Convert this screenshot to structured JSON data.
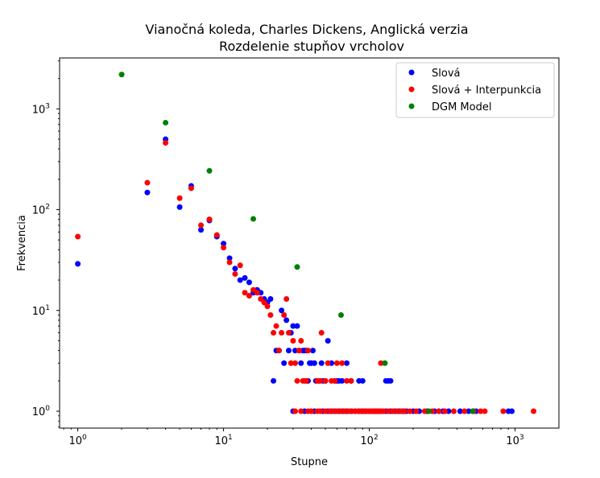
{
  "chart_data": {
    "type": "scatter",
    "title": "Vianočná koleda, Charles Dickens, Anglická verzia",
    "subtitle": "Rozdelenie stupňov vrcholov",
    "xlabel": "Stupne",
    "ylabel": "Frekvencia",
    "xscale": "log",
    "yscale": "log",
    "xlim": [
      0.75,
      2000
    ],
    "ylim": [
      0.68,
      3200
    ],
    "xticks": [
      {
        "value": 1,
        "base": "10",
        "exp": "0"
      },
      {
        "value": 10,
        "base": "10",
        "exp": "1"
      },
      {
        "value": 100,
        "base": "10",
        "exp": "2"
      },
      {
        "value": 1000,
        "base": "10",
        "exp": "3"
      }
    ],
    "yticks": [
      {
        "value": 1,
        "base": "10",
        "exp": "0"
      },
      {
        "value": 10,
        "base": "10",
        "exp": "1"
      },
      {
        "value": 100,
        "base": "10",
        "exp": "2"
      },
      {
        "value": 1000,
        "base": "10",
        "exp": "3"
      }
    ],
    "grid": false,
    "legend_position": "top-right",
    "series": [
      {
        "name": "Slová",
        "color": "#0000ff",
        "points": [
          [
            1,
            29
          ],
          [
            3,
            148
          ],
          [
            4,
            500
          ],
          [
            5,
            106
          ],
          [
            6,
            172
          ],
          [
            7,
            63
          ],
          [
            8,
            78
          ],
          [
            9,
            54
          ],
          [
            10,
            46
          ],
          [
            11,
            33
          ],
          [
            12,
            26
          ],
          [
            13,
            20
          ],
          [
            14,
            21
          ],
          [
            15,
            19
          ],
          [
            16,
            15
          ],
          [
            17,
            16
          ],
          [
            18,
            15
          ],
          [
            19,
            13
          ],
          [
            20,
            12
          ],
          [
            21,
            13
          ],
          [
            22,
            2
          ],
          [
            23,
            4
          ],
          [
            24,
            4
          ],
          [
            25,
            10
          ],
          [
            26,
            3
          ],
          [
            27,
            8
          ],
          [
            28,
            4
          ],
          [
            29,
            6
          ],
          [
            30,
            7
          ],
          [
            31,
            4
          ],
          [
            32,
            7
          ],
          [
            33,
            4
          ],
          [
            34,
            3
          ],
          [
            35,
            4
          ],
          [
            36,
            4
          ],
          [
            37,
            4
          ],
          [
            38,
            2
          ],
          [
            39,
            3
          ],
          [
            40,
            3
          ],
          [
            41,
            4
          ],
          [
            42,
            3
          ],
          [
            43,
            2
          ],
          [
            45,
            2
          ],
          [
            47,
            3
          ],
          [
            48,
            2
          ],
          [
            50,
            2
          ],
          [
            52,
            5
          ],
          [
            55,
            3
          ],
          [
            58,
            2
          ],
          [
            60,
            2
          ],
          [
            62,
            2
          ],
          [
            65,
            2
          ],
          [
            70,
            3
          ],
          [
            75,
            2
          ],
          [
            85,
            2
          ],
          [
            90,
            2
          ],
          [
            130,
            2
          ],
          [
            135,
            2
          ],
          [
            140,
            2
          ],
          [
            30,
            1
          ],
          [
            36,
            1
          ],
          [
            42,
            1
          ],
          [
            48,
            1
          ],
          [
            52,
            1
          ],
          [
            55,
            1
          ],
          [
            58,
            1
          ],
          [
            62,
            1
          ],
          [
            66,
            1
          ],
          [
            70,
            1
          ],
          [
            75,
            1
          ],
          [
            80,
            1
          ],
          [
            85,
            1
          ],
          [
            90,
            1
          ],
          [
            95,
            1
          ],
          [
            100,
            1
          ],
          [
            105,
            1
          ],
          [
            110,
            1
          ],
          [
            115,
            1
          ],
          [
            120,
            1
          ],
          [
            130,
            1
          ],
          [
            140,
            1
          ],
          [
            150,
            1
          ],
          [
            160,
            1
          ],
          [
            170,
            1
          ],
          [
            180,
            1
          ],
          [
            200,
            1
          ],
          [
            220,
            1
          ],
          [
            250,
            1
          ],
          [
            280,
            1
          ],
          [
            300,
            1
          ],
          [
            320,
            1
          ],
          [
            350,
            1
          ],
          [
            420,
            1
          ],
          [
            480,
            1
          ],
          [
            540,
            1
          ],
          [
            900,
            1
          ],
          [
            950,
            1
          ]
        ]
      },
      {
        "name": "Slová + Interpunkcia",
        "color": "#ff0000",
        "points": [
          [
            1,
            54
          ],
          [
            3,
            185
          ],
          [
            4,
            460
          ],
          [
            5,
            130
          ],
          [
            6,
            163
          ],
          [
            7,
            70
          ],
          [
            8,
            80
          ],
          [
            9,
            56
          ],
          [
            10,
            42
          ],
          [
            11,
            30
          ],
          [
            12,
            23
          ],
          [
            13,
            28
          ],
          [
            14,
            15
          ],
          [
            15,
            14
          ],
          [
            16,
            16
          ],
          [
            17,
            15
          ],
          [
            18,
            13
          ],
          [
            19,
            12
          ],
          [
            20,
            11
          ],
          [
            21,
            9
          ],
          [
            22,
            6
          ],
          [
            23,
            7
          ],
          [
            24,
            4
          ],
          [
            25,
            6
          ],
          [
            26,
            9
          ],
          [
            27,
            13
          ],
          [
            28,
            6
          ],
          [
            29,
            3
          ],
          [
            30,
            5
          ],
          [
            31,
            3
          ],
          [
            32,
            2
          ],
          [
            33,
            4
          ],
          [
            34,
            5
          ],
          [
            35,
            2
          ],
          [
            36,
            2
          ],
          [
            37,
            2
          ],
          [
            38,
            4
          ],
          [
            44,
            2
          ],
          [
            46,
            2
          ],
          [
            47,
            6
          ],
          [
            50,
            2
          ],
          [
            52,
            3
          ],
          [
            55,
            2
          ],
          [
            58,
            2
          ],
          [
            60,
            3
          ],
          [
            65,
            3
          ],
          [
            70,
            2
          ],
          [
            75,
            2
          ],
          [
            120,
            3
          ],
          [
            31,
            1
          ],
          [
            34,
            1
          ],
          [
            38,
            1
          ],
          [
            40,
            1
          ],
          [
            44,
            1
          ],
          [
            46,
            1
          ],
          [
            50,
            1
          ],
          [
            54,
            1
          ],
          [
            57,
            1
          ],
          [
            60,
            1
          ],
          [
            64,
            1
          ],
          [
            68,
            1
          ],
          [
            72,
            1
          ],
          [
            76,
            1
          ],
          [
            80,
            1
          ],
          [
            84,
            1
          ],
          [
            88,
            1
          ],
          [
            92,
            1
          ],
          [
            96,
            1
          ],
          [
            100,
            1
          ],
          [
            104,
            1
          ],
          [
            108,
            1
          ],
          [
            112,
            1
          ],
          [
            116,
            1
          ],
          [
            120,
            1
          ],
          [
            125,
            1
          ],
          [
            135,
            1
          ],
          [
            145,
            1
          ],
          [
            155,
            1
          ],
          [
            165,
            1
          ],
          [
            175,
            1
          ],
          [
            190,
            1
          ],
          [
            210,
            1
          ],
          [
            240,
            1
          ],
          [
            270,
            1
          ],
          [
            300,
            1
          ],
          [
            330,
            1
          ],
          [
            380,
            1
          ],
          [
            450,
            1
          ],
          [
            520,
            1
          ],
          [
            580,
            1
          ],
          [
            620,
            1
          ],
          [
            830,
            1
          ],
          [
            1340,
            1
          ]
        ]
      },
      {
        "name": "DGM Model",
        "color": "#008000",
        "points": [
          [
            2,
            2190
          ],
          [
            4,
            729
          ],
          [
            8,
            243
          ],
          [
            16,
            81
          ],
          [
            32,
            27
          ],
          [
            64,
            9
          ],
          [
            128,
            3
          ],
          [
            256,
            1
          ],
          [
            512,
            1
          ]
        ]
      }
    ]
  }
}
